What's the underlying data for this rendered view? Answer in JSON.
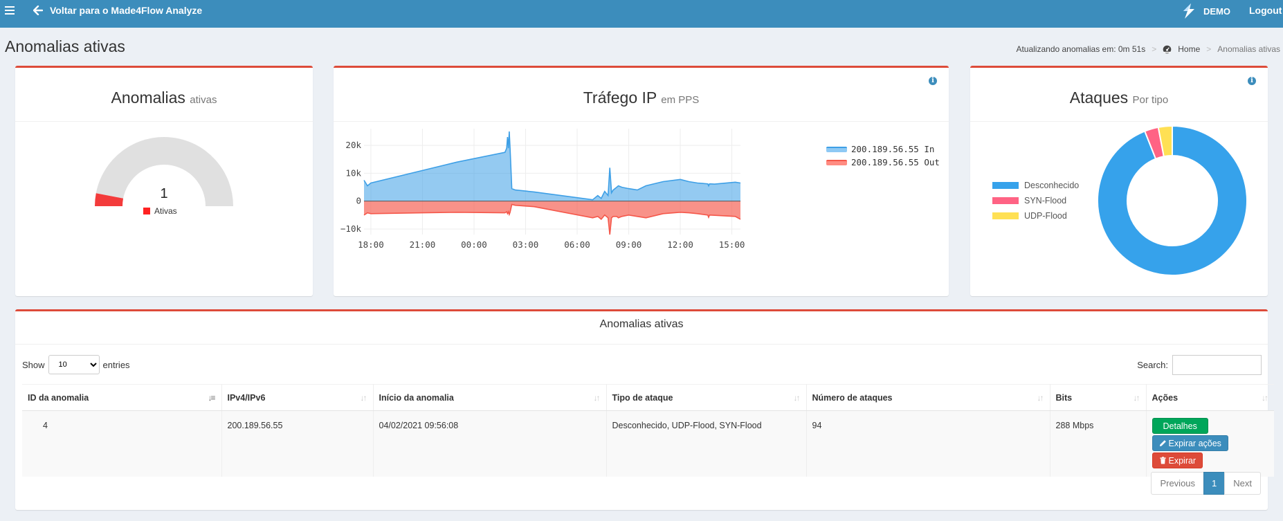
{
  "header": {
    "back_label": "Voltar para o Made4Flow Analyze",
    "brand_label": "DEMO",
    "logout_label": "Logout"
  },
  "page": {
    "title": "Anomalias ativas",
    "refresh_text": "Atualizando anomalias em: 0m 51s",
    "breadcrumb_home": "Home",
    "breadcrumb_current": "Anomalias ativas"
  },
  "anomalies_box": {
    "title": "Anomalias",
    "subtitle": "ativas",
    "count": "1",
    "legend_label": "Ativas",
    "gauge_fill": 0.06,
    "colors": {
      "fill": "#f33b3b",
      "track": "#e0e0e0"
    }
  },
  "traffic_box": {
    "title": "Tráfego IP",
    "subtitle": "em PPS"
  },
  "attacks_box": {
    "title": "Ataques",
    "subtitle": "Por tipo"
  },
  "chart_data": [
    {
      "type": "area",
      "title": "Tráfego IP",
      "subtitle": "em PPS",
      "x_tick_labels": [
        "18:00",
        "21:00",
        "00:00",
        "03:00",
        "06:00",
        "09:00",
        "12:00",
        "15:00"
      ],
      "y_tick_labels": [
        "20k",
        "10k",
        "0",
        "−10k"
      ],
      "ylim": [
        -12000,
        26000
      ],
      "grid": true,
      "legend_position": "right",
      "series": [
        {
          "name": "200.189.56.55 In",
          "color": "#3d9fe6",
          "x": [
            17.6,
            17.8,
            18.0,
            21.0,
            23.0,
            25.8,
            25.9,
            25.95,
            26.0,
            26.05,
            26.1,
            26.2,
            26.4,
            27.5,
            30.9,
            31.2,
            31.4,
            31.6,
            31.8,
            31.9,
            32.0,
            32.1,
            32.3,
            32.4,
            32.6,
            33.0,
            33.5,
            34.0,
            35.0,
            36.0,
            36.5,
            37.0,
            37.6,
            37.65,
            37.7,
            38.0,
            39.2,
            39.5
          ],
          "y": [
            7500,
            5500,
            6500,
            11000,
            14000,
            17500,
            19000,
            23000,
            19000,
            25000,
            19000,
            4500,
            4000,
            3300,
            500,
            2000,
            1000,
            3500,
            2000,
            12000,
            3000,
            4000,
            5000,
            5500,
            5000,
            4500,
            4000,
            5500,
            7000,
            7800,
            7000,
            6500,
            6200,
            5500,
            6200,
            6100,
            6800,
            6500
          ]
        },
        {
          "name": "200.189.56.55 Out",
          "color": "#f5574a",
          "x": [
            17.6,
            17.8,
            18.0,
            21.0,
            23.0,
            25.8,
            25.9,
            25.95,
            26.0,
            26.05,
            26.1,
            26.2,
            26.4,
            27.5,
            30.9,
            31.2,
            31.4,
            31.6,
            31.8,
            31.9,
            32.0,
            32.1,
            32.3,
            32.4,
            32.6,
            33.0,
            33.5,
            34.0,
            35.0,
            36.0,
            36.5,
            37.0,
            37.6,
            37.65,
            37.7,
            38.0,
            39.2,
            39.5
          ],
          "y": [
            -5000,
            -4200,
            -4500,
            -4200,
            -4000,
            -4200,
            -3800,
            -4500,
            -3800,
            -4800,
            -4000,
            -1200,
            -1500,
            -2000,
            -6000,
            -5500,
            -6500,
            -5000,
            -6000,
            -12000,
            -6000,
            -5500,
            -5500,
            -6000,
            -5500,
            -5000,
            -5500,
            -6000,
            -4500,
            -4000,
            -4200,
            -4500,
            -5000,
            -5800,
            -5000,
            -5100,
            -5500,
            -6500
          ]
        }
      ]
    },
    {
      "type": "pie",
      "title": "Ataques",
      "subtitle": "Por tipo",
      "legend_position": "left",
      "labels": [
        "Desconhecido",
        "SYN-Flood",
        "UDP-Flood"
      ],
      "values": [
        94,
        3,
        3
      ],
      "colors": [
        "#36a2eb",
        "#ff6384",
        "#ffe054"
      ]
    }
  ],
  "table": {
    "title": "Anomalias ativas",
    "show_label": "Show",
    "entries_value": "10",
    "entries_label": "entries",
    "search_label": "Search:",
    "columns": [
      "ID da anomalia",
      "IPv4/IPv6",
      "Início da anomalia",
      "Tipo de ataque",
      "Número de ataques",
      "Bits",
      "Ações"
    ],
    "row": {
      "id": "4",
      "ip": "200.189.56.55",
      "start": "04/02/2021 09:56:08",
      "type": "Desconhecido, UDP-Flood, SYN-Flood",
      "count": "94",
      "bits": "288 Mbps"
    },
    "actions": {
      "details": "Detalhes",
      "expire_actions": "Expirar ações",
      "expire": "Expirar"
    },
    "pager": {
      "prev": "Previous",
      "page": "1",
      "next": "Next"
    }
  }
}
